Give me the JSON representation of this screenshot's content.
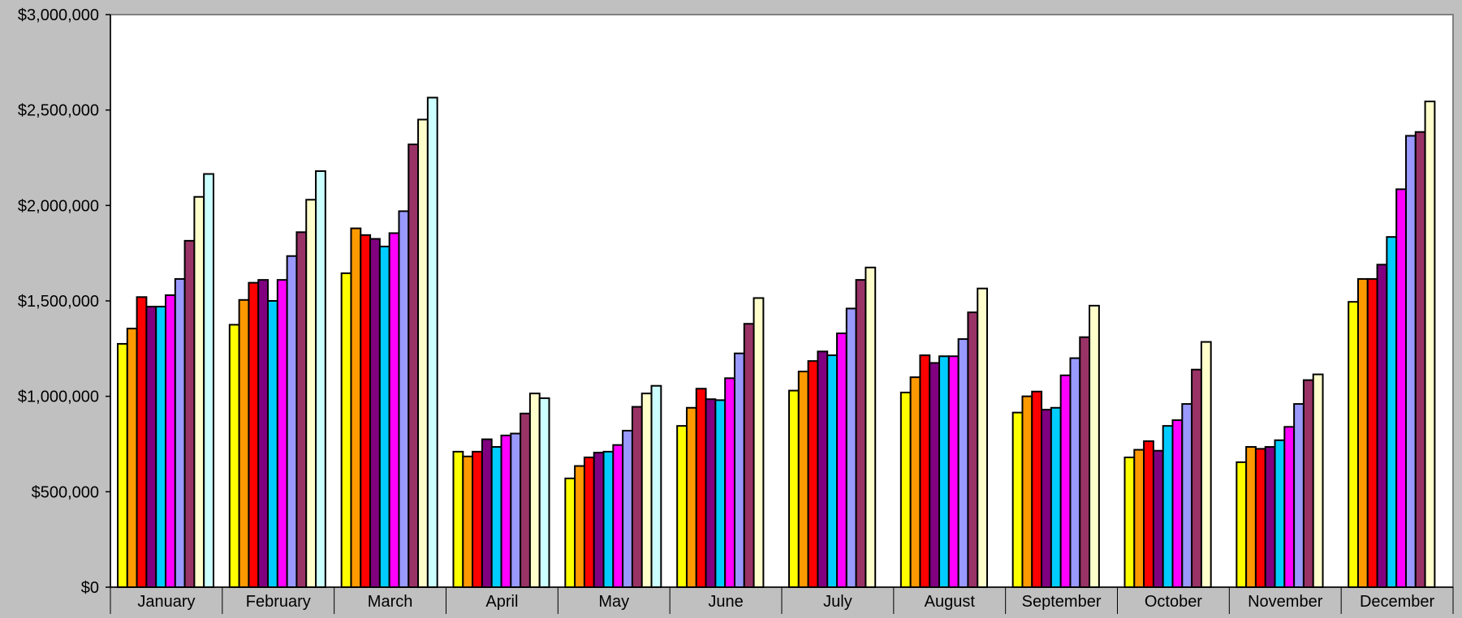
{
  "chart_data": {
    "type": "bar",
    "title": "",
    "xlabel": "",
    "ylabel": "",
    "ylim": [
      0,
      3000000
    ],
    "yticks": [
      0,
      500000,
      1000000,
      1500000,
      2000000,
      2500000,
      3000000
    ],
    "ytick_labels": [
      "$0",
      "$500,000",
      "$1,000,000",
      "$1,500,000",
      "$2,000,000",
      "$2,500,000",
      "$3,000,000"
    ],
    "grid": false,
    "legend": "none",
    "plot_background": "#ffffff",
    "figure_background": "#c0c0c0",
    "categories": [
      "January",
      "February",
      "March",
      "April",
      "May",
      "June",
      "July",
      "August",
      "September",
      "October",
      "November",
      "December"
    ],
    "series": [
      {
        "color": "#ffff00",
        "values": [
          1275000,
          1375000,
          1645000,
          710000,
          570000,
          845000,
          1030000,
          1020000,
          915000,
          680000,
          655000,
          1495000
        ]
      },
      {
        "color": "#ff9900",
        "values": [
          1355000,
          1505000,
          1880000,
          685000,
          635000,
          940000,
          1130000,
          1100000,
          1000000,
          720000,
          735000,
          1615000
        ]
      },
      {
        "color": "#ff0000",
        "values": [
          1520000,
          1595000,
          1845000,
          710000,
          680000,
          1040000,
          1185000,
          1215000,
          1025000,
          765000,
          725000,
          1615000
        ]
      },
      {
        "color": "#800080",
        "values": [
          1470000,
          1610000,
          1825000,
          775000,
          705000,
          985000,
          1235000,
          1175000,
          930000,
          715000,
          735000,
          1690000
        ]
      },
      {
        "color": "#00ccff",
        "values": [
          1470000,
          1500000,
          1785000,
          735000,
          710000,
          980000,
          1215000,
          1210000,
          940000,
          845000,
          770000,
          1835000
        ]
      },
      {
        "color": "#ff00ff",
        "values": [
          1530000,
          1610000,
          1855000,
          795000,
          745000,
          1095000,
          1330000,
          1210000,
          1110000,
          875000,
          840000,
          2085000
        ]
      },
      {
        "color": "#9999ff",
        "values": [
          1615000,
          1735000,
          1970000,
          805000,
          820000,
          1225000,
          1460000,
          1300000,
          1200000,
          960000,
          960000,
          2365000
        ]
      },
      {
        "color": "#993366",
        "values": [
          1815000,
          1860000,
          2320000,
          910000,
          945000,
          1380000,
          1610000,
          1440000,
          1310000,
          1140000,
          1085000,
          2385000
        ]
      },
      {
        "color": "#ffffcc",
        "values": [
          2045000,
          2030000,
          2450000,
          1015000,
          1015000,
          1515000,
          1675000,
          1565000,
          1475000,
          1285000,
          1115000,
          2545000
        ]
      },
      {
        "color": "#ccffff",
        "values": [
          2165000,
          2180000,
          2565000,
          990000,
          1055000,
          null,
          null,
          null,
          null,
          null,
          null,
          null
        ]
      }
    ]
  }
}
